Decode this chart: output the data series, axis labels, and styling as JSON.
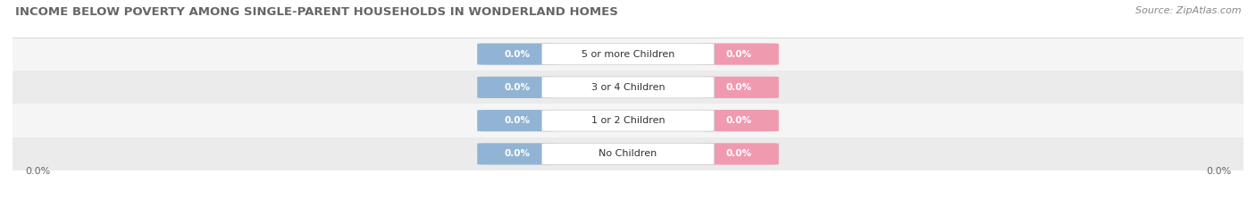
{
  "title": "INCOME BELOW POVERTY AMONG SINGLE-PARENT HOUSEHOLDS IN WONDERLAND HOMES",
  "source_text": "Source: ZipAtlas.com",
  "categories": [
    "No Children",
    "1 or 2 Children",
    "3 or 4 Children",
    "5 or more Children"
  ],
  "father_values": [
    0.0,
    0.0,
    0.0,
    0.0
  ],
  "mother_values": [
    0.0,
    0.0,
    0.0,
    0.0
  ],
  "father_color": "#92b4d4",
  "mother_color": "#f09ab0",
  "title_fontsize": 9.5,
  "source_fontsize": 8,
  "label_fontsize": 8,
  "value_fontsize": 7.5,
  "x_axis_value_left": "0.0%",
  "x_axis_value_right": "0.0%",
  "background_color": "#ffffff",
  "row_colors": [
    "#ebebeb",
    "#f5f5f5",
    "#ebebeb",
    "#f5f5f5"
  ]
}
